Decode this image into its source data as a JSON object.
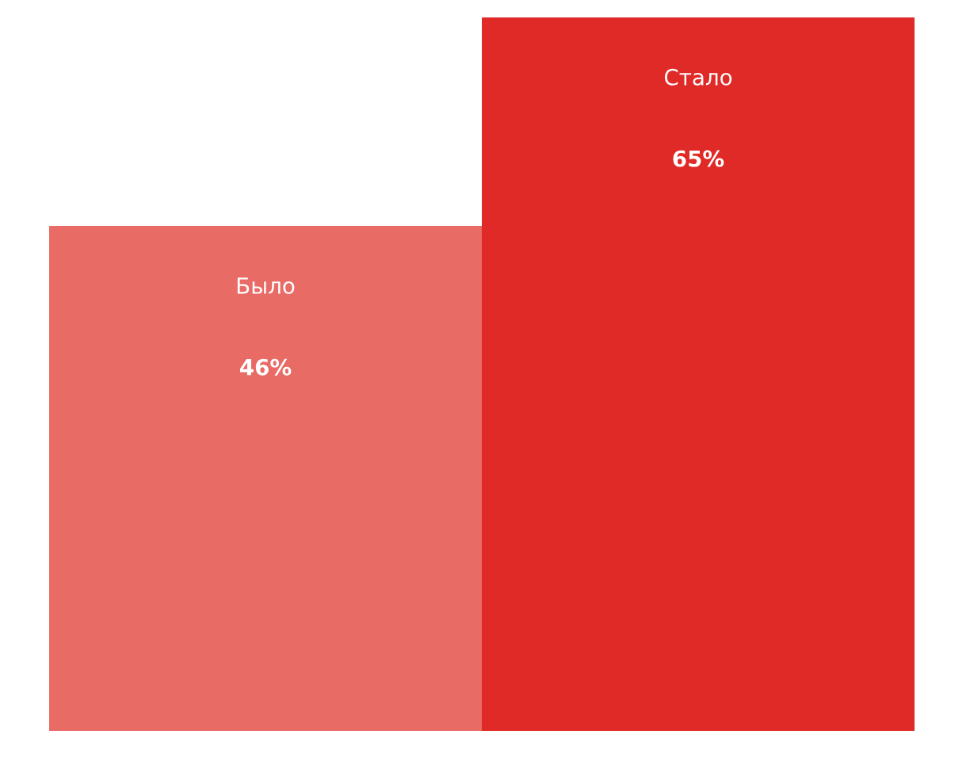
{
  "chart_data": {
    "type": "bar",
    "categories": [
      "Было",
      "Стало"
    ],
    "values": [
      46,
      65
    ],
    "colors": [
      "#e96b66",
      "#e02a27"
    ],
    "value_labels": [
      "46%",
      "65%"
    ]
  }
}
